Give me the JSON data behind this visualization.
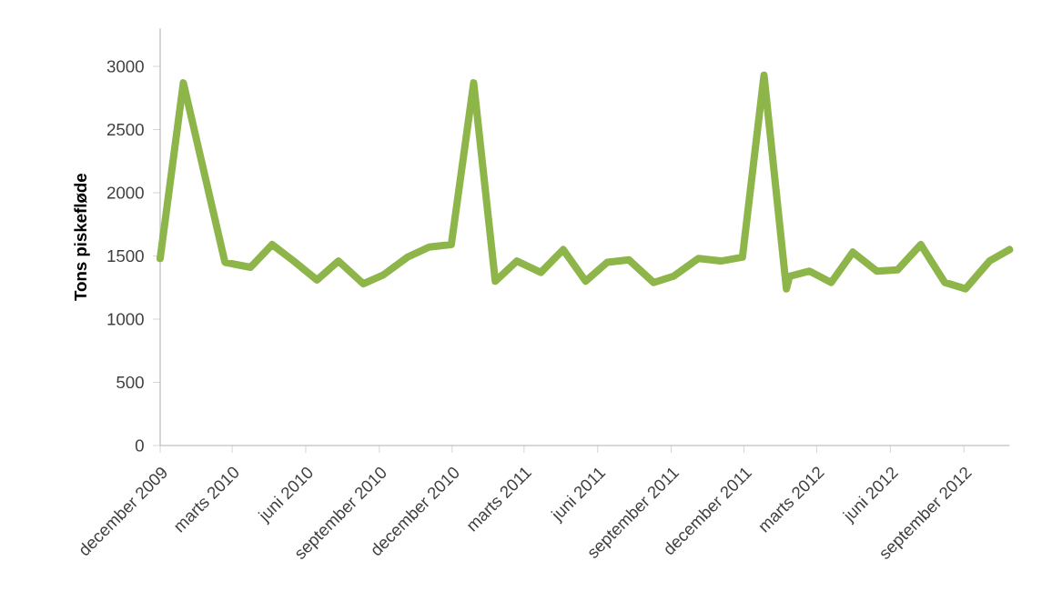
{
  "chart_data": {
    "type": "line",
    "ylabel": "Tons piskefløde",
    "x": [
      "2009-12-01",
      "2009-12-30",
      "2010-02-20",
      "2010-03-24",
      "2010-04-20",
      "2010-05-17",
      "2010-06-15",
      "2010-07-12",
      "2010-08-12",
      "2010-09-06",
      "2010-10-06",
      "2010-11-02",
      "2010-11-30",
      "2010-12-28",
      "2011-01-24",
      "2011-02-20",
      "2011-03-22",
      "2011-04-19",
      "2011-05-17",
      "2011-06-13",
      "2011-07-10",
      "2011-08-10",
      "2011-09-04",
      "2011-10-05",
      "2011-11-02",
      "2011-11-29",
      "2011-12-26",
      "2012-01-23",
      "2012-01-27",
      "2012-02-21",
      "2012-03-19",
      "2012-04-15",
      "2012-05-15",
      "2012-06-10",
      "2012-07-09",
      "2012-08-08",
      "2012-09-03",
      "2012-10-03",
      "2012-10-28"
    ],
    "series": [
      {
        "color": "#8db54a",
        "values": [
          1480,
          2870,
          1450,
          1410,
          1590,
          1460,
          1310,
          1460,
          1280,
          1350,
          1490,
          1570,
          1590,
          2870,
          1300,
          1460,
          1370,
          1550,
          1300,
          1450,
          1470,
          1290,
          1340,
          1480,
          1460,
          1490,
          2930,
          1240,
          1340,
          1380,
          1290,
          1530,
          1380,
          1390,
          1590,
          1290,
          1240,
          1460,
          1550
        ]
      }
    ],
    "xlim": [
      "2009-12-01",
      "2012-10-28"
    ],
    "xticks": [
      {
        "value": "2009-12-01",
        "label": "december 2009"
      },
      {
        "value": "2010-03-01",
        "label": "marts 2010"
      },
      {
        "value": "2010-06-01",
        "label": "juni 2010"
      },
      {
        "value": "2010-09-01",
        "label": "september 2010"
      },
      {
        "value": "2010-12-01",
        "label": "december 2010"
      },
      {
        "value": "2011-03-01",
        "label": "marts 2011"
      },
      {
        "value": "2011-06-01",
        "label": "juni 2011"
      },
      {
        "value": "2011-09-01",
        "label": "september 2011"
      },
      {
        "value": "2011-12-01",
        "label": "december 2011"
      },
      {
        "value": "2012-03-01",
        "label": "marts 2012"
      },
      {
        "value": "2012-06-01",
        "label": "juni 2012"
      },
      {
        "value": "2012-09-01",
        "label": "september 2012"
      }
    ],
    "ylim": [
      0,
      3300
    ],
    "yticks": [
      0,
      500,
      1000,
      1500,
      2000,
      2500,
      3000
    ],
    "grid": false,
    "marker": "none",
    "line_style": "solid"
  }
}
